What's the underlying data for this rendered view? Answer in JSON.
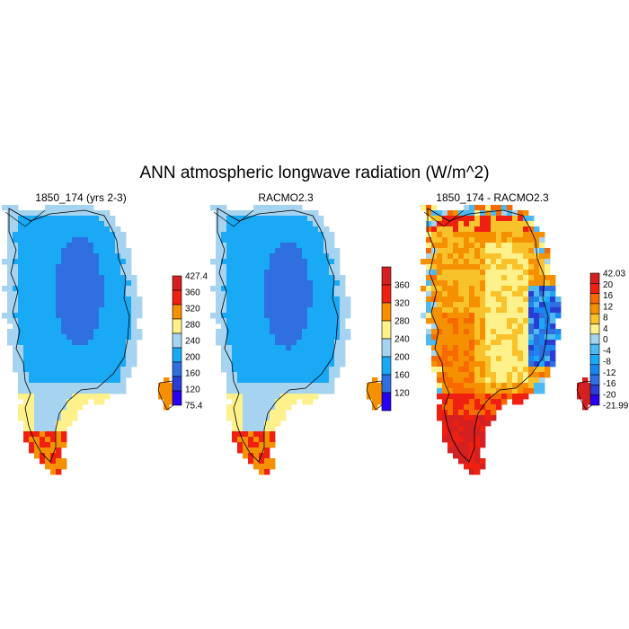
{
  "figure": {
    "title": "ANN atmospheric longwave radiation (W/m^2)"
  },
  "panels": [
    {
      "title": "1850_174 (yrs 2-3)",
      "colorbar": {
        "labels": [
          "427.4",
          "360",
          "320",
          "280",
          "240",
          "200",
          "160",
          "120",
          "75.4"
        ],
        "colors": [
          "#d42020",
          "#f02010",
          "#f59000",
          "#fef08a",
          "#a6d3ef",
          "#19a9f5",
          "#2f6fe0",
          "#2a3ed6",
          "#2800f2"
        ]
      }
    },
    {
      "title": "RACMO2.3",
      "colorbar": {
        "labels": [
          "360",
          "320",
          "280",
          "240",
          "200",
          "160",
          "120"
        ],
        "colors": [
          "#d42020",
          "#f02010",
          "#f59000",
          "#fef08a",
          "#a6d3ef",
          "#19a9f5",
          "#2f6fe0",
          "#2800f2"
        ]
      }
    },
    {
      "title": "1850_174 - RACMO2.3",
      "colorbar": {
        "labels": [
          "42.03",
          "20",
          "16",
          "12",
          "8",
          "4",
          "0",
          "-4",
          "-8",
          "-12",
          "-16",
          "-20",
          "-21.99"
        ],
        "colors": [
          "#d42020",
          "#f02010",
          "#f66a00",
          "#f59000",
          "#f8c22a",
          "#fef08a",
          "#a6d3ef",
          "#4cb9f0",
          "#19a9f5",
          "#1a86f0",
          "#2f6fe0",
          "#2a3ed6",
          "#2800f2"
        ]
      }
    }
  ],
  "palette": {
    "coast": "#000000",
    "outside": "#ffffff"
  }
}
